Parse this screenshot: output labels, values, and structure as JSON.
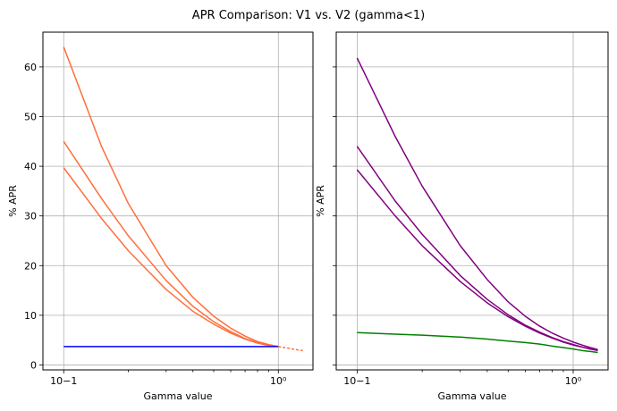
{
  "chart_data": {
    "title": "APR Comparison: V1 vs. V2 (gamma<1)",
    "panels": [
      {
        "type": "line",
        "xlabel": "Gamma value",
        "ylabel": "% APR",
        "xscale": "log",
        "xlim": [
          0.08,
          1.45
        ],
        "ylim": [
          -1,
          67
        ],
        "x_ticks": [
          {
            "value": 0.1,
            "label": "10−1"
          },
          {
            "value": 1,
            "label": "10⁰"
          }
        ],
        "y_ticks": [
          {
            "value": 0,
            "label": "0"
          },
          {
            "value": 10,
            "label": "10"
          },
          {
            "value": 20,
            "label": "20"
          },
          {
            "value": 30,
            "label": "30"
          },
          {
            "value": 40,
            "label": "40"
          },
          {
            "value": 50,
            "label": "50"
          },
          {
            "value": 60,
            "label": "60"
          }
        ],
        "grid": true,
        "series": [
          {
            "color": "#ff6f3c",
            "x": [
              0.1,
              0.15,
              0.2,
              0.3,
              0.4,
              0.5,
              0.6,
              0.7,
              0.8,
              0.9,
              1.0
            ],
            "values": [
              64.0,
              44.0,
              32.5,
              20.0,
              13.6,
              9.8,
              7.4,
              5.8,
              4.7,
              4.1,
              3.7
            ]
          },
          {
            "color": "#ff6f3c",
            "x": [
              0.1,
              0.15,
              0.2,
              0.3,
              0.4,
              0.5,
              0.6,
              0.7,
              0.8,
              0.9,
              1.0
            ],
            "values": [
              45.0,
              33.5,
              26.0,
              17.0,
              11.8,
              8.7,
              6.7,
              5.3,
              4.5,
              4.0,
              3.7
            ]
          },
          {
            "color": "#ff6f3c",
            "x": [
              0.1,
              0.15,
              0.2,
              0.3,
              0.4,
              0.5,
              0.6,
              0.7,
              0.8,
              0.9,
              1.0
            ],
            "values": [
              39.7,
              29.5,
              23.0,
              15.2,
              10.8,
              8.2,
              6.4,
              5.2,
              4.4,
              3.9,
              3.7
            ]
          },
          {
            "color": "#0000ff",
            "x": [
              0.1,
              1.0
            ],
            "values": [
              3.7,
              3.7
            ]
          },
          {
            "color": "#ff6f3c",
            "dashed": true,
            "x": [
              1.0,
              1.1,
              1.2,
              1.3
            ],
            "values": [
              3.7,
              3.4,
              3.1,
              2.9
            ]
          }
        ]
      },
      {
        "type": "line",
        "xlabel": "Gamma value",
        "ylabel": "% APR",
        "xscale": "log",
        "xlim": [
          0.08,
          1.45
        ],
        "ylim": [
          -1,
          67
        ],
        "x_ticks": [
          {
            "value": 0.1,
            "label": "10−1"
          },
          {
            "value": 1,
            "label": "10⁰"
          }
        ],
        "y_ticks": [],
        "grid": true,
        "series": [
          {
            "color": "#800080",
            "x": [
              0.1,
              0.15,
              0.2,
              0.3,
              0.4,
              0.5,
              0.6,
              0.7,
              0.8,
              0.9,
              1.0,
              1.1,
              1.2,
              1.3
            ],
            "values": [
              61.8,
              46.0,
              36.0,
              24.0,
              17.2,
              12.7,
              9.8,
              7.8,
              6.4,
              5.4,
              4.6,
              4.0,
              3.5,
              3.1
            ]
          },
          {
            "color": "#800080",
            "x": [
              0.1,
              0.15,
              0.2,
              0.3,
              0.4,
              0.5,
              0.6,
              0.7,
              0.8,
              0.9,
              1.0,
              1.1,
              1.2,
              1.3
            ],
            "values": [
              44.0,
              33.0,
              26.3,
              18.0,
              13.2,
              10.1,
              8.0,
              6.6,
              5.5,
              4.7,
              4.1,
              3.6,
              3.2,
              2.9
            ]
          },
          {
            "color": "#800080",
            "x": [
              0.1,
              0.15,
              0.2,
              0.3,
              0.4,
              0.5,
              0.6,
              0.7,
              0.8,
              0.9,
              1.0,
              1.1,
              1.2,
              1.3
            ],
            "values": [
              39.3,
              30.0,
              24.0,
              16.8,
              12.5,
              9.7,
              7.8,
              6.4,
              5.4,
              4.6,
              4.0,
              3.6,
              3.2,
              2.9
            ]
          },
          {
            "color": "#008000",
            "x": [
              0.1,
              0.15,
              0.2,
              0.3,
              0.4,
              0.5,
              0.6,
              0.7,
              0.8,
              0.9,
              1.0,
              1.1,
              1.2,
              1.3
            ],
            "values": [
              6.5,
              6.2,
              6.0,
              5.6,
              5.2,
              4.8,
              4.5,
              4.2,
              3.8,
              3.5,
              3.2,
              2.9,
              2.7,
              2.5
            ]
          }
        ]
      }
    ]
  }
}
